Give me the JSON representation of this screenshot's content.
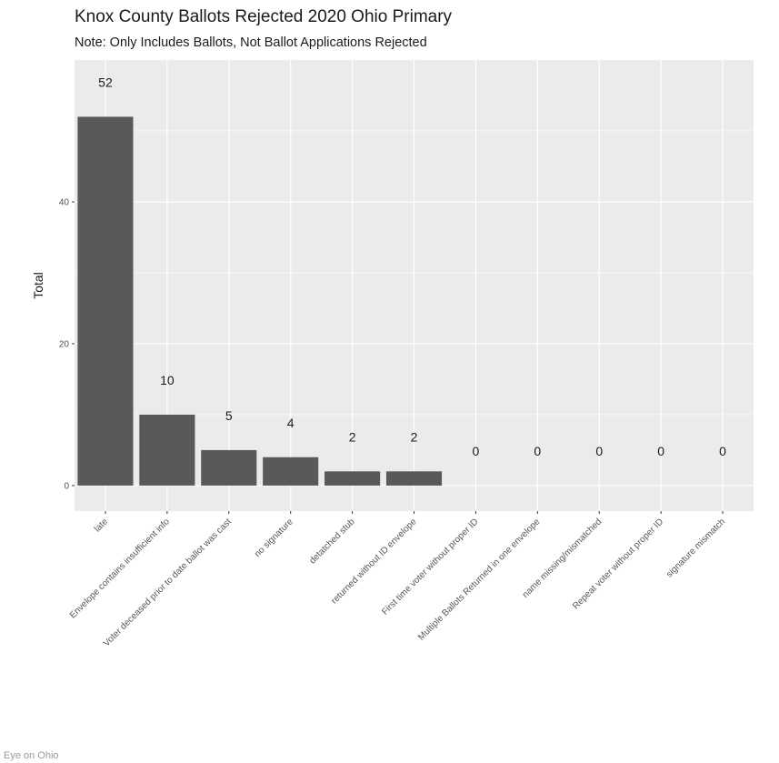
{
  "footer": {
    "credit": "Eye on Ohio"
  },
  "chart_data": {
    "type": "bar",
    "title": "Knox County Ballots Rejected 2020 Ohio Primary",
    "subtitle": "Note: Only Includes Ballots, Not Ballot Applications Rejected",
    "xlabel": "",
    "ylabel": "Total",
    "categories": [
      "late",
      "Envelope contains insufficient info",
      "Voter deceased prior to date ballot was cast",
      "no signature",
      "detatched stub",
      "returned without ID envelope",
      "First time voter without proper ID",
      "Multiple Ballots Returned in one envelope",
      "name missing/mismatched",
      "Repeat voter without proper ID",
      "signature mismatch"
    ],
    "values": [
      52,
      10,
      5,
      4,
      2,
      2,
      0,
      0,
      0,
      0,
      0
    ],
    "data_labels": [
      "52",
      "10",
      "5",
      "4",
      "2",
      "2",
      "0",
      "0",
      "0",
      "0",
      "0"
    ],
    "ylim": [
      -3.6,
      60
    ],
    "y_ticks": [
      0,
      20,
      40
    ],
    "y_tick_labels": [
      "0",
      "20",
      "40"
    ],
    "grid": true,
    "legend": "none",
    "colors": {
      "bar": "#595959",
      "panel": "#ebebeb",
      "grid": "#ffffff"
    }
  }
}
